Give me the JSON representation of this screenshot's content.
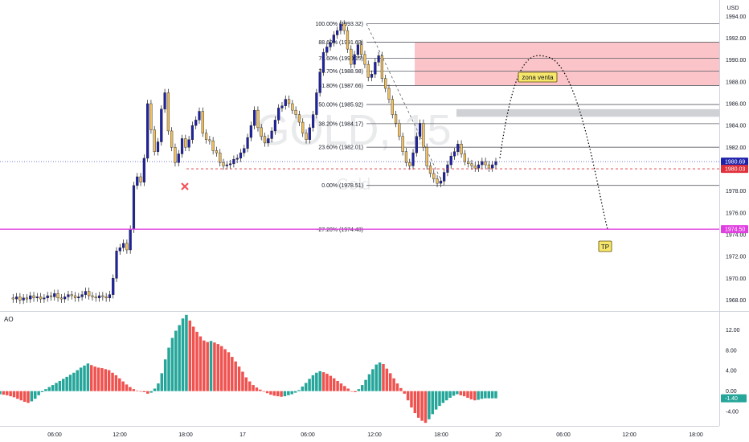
{
  "chart_data": {
    "type": "candlestick",
    "currency": "USD",
    "watermark_symbol": "GOLD, 15",
    "watermark_name": "Gold",
    "price_axis": {
      "ylim": [
        1967.0,
        1995.5
      ],
      "ticks": [
        1968,
        1970,
        1972,
        1974,
        1976,
        1978,
        1980,
        1982,
        1984,
        1986,
        1988,
        1990,
        1992,
        1994
      ],
      "tick_labels": [
        "1968.00",
        "1970.00",
        "1972.00",
        "1974.00",
        "1976.00",
        "1978.00",
        "1980.00",
        "1982.00",
        "1984.00",
        "1986.00",
        "1988.00",
        "1990.00",
        "1992.00",
        "1994.00"
      ]
    },
    "time_axis": {
      "labels": [
        "06:00",
        "12:00",
        "18:00",
        "17",
        "06:00",
        "12:00",
        "18:00",
        "20",
        "06:00",
        "12:00",
        "18:00"
      ]
    },
    "price_tags": [
      {
        "value": 1980.69,
        "label": "1980.69",
        "color": "#1e22aa"
      },
      {
        "value": 1980.03,
        "label": "1980.03",
        "color": "#e0303a"
      },
      {
        "value": 1974.5,
        "label": "1974.50",
        "color": "#e040e0"
      }
    ],
    "fib_levels": [
      {
        "label": "100.00% (1993.32)",
        "value": 1993.32
      },
      {
        "label": "88.60% (1991.63)",
        "value": 1991.63
      },
      {
        "label": "78.60% (1990.15)",
        "value": 1990.15
      },
      {
        "label": "70.70% (1988.98)",
        "value": 1988.98
      },
      {
        "label": "61.80% (1987.66)",
        "value": 1987.66
      },
      {
        "label": "50.00% (1985.92)",
        "value": 1985.92
      },
      {
        "label": "38.20% (1984.17)",
        "value": 1984.17
      },
      {
        "label": "23.60% (1982.01)",
        "value": 1982.01
      },
      {
        "label": "0.00% (1978.51)",
        "value": 1978.51
      },
      {
        "label": "-27.20% (1974.48)",
        "value": 1974.48
      }
    ],
    "sell_zone": {
      "label": "zona venta",
      "from": 1987.66,
      "to": 1991.63
    },
    "grey_band": {
      "from": 1984.8,
      "to": 1985.5
    },
    "target_label": "TP",
    "target_level": 1974.5,
    "candles_price_path": [
      1968.2,
      1968.1,
      1968.3,
      1968.0,
      1968.2,
      1968.1,
      1968.4,
      1968.2,
      1968.3,
      1968.1,
      1968.2,
      1968.4,
      1968.3,
      1968.6,
      1968.2,
      1968.1,
      1968.3,
      1968.5,
      1968.4,
      1968.2,
      1968.3,
      1968.5,
      1968.8,
      1968.4,
      1968.3,
      1968.2,
      1968.4,
      1968.3,
      1968.2,
      1968.5,
      1970.0,
      1972.5,
      1972.8,
      1973.2,
      1972.6,
      1974.5,
      1978.5,
      1979.3,
      1978.8,
      1981.0,
      1986.0,
      1983.6,
      1981.6,
      1982.5,
      1985.5,
      1987.0,
      1983.5,
      1982.0,
      1980.6,
      1981.4,
      1982.8,
      1982.0,
      1982.7,
      1984.0,
      1984.5,
      1985.3,
      1983.3,
      1982.7,
      1982.6,
      1981.7,
      1981.5,
      1980.6,
      1980.3,
      1980.4,
      1980.5,
      1980.9,
      1981.0,
      1981.5,
      1981.9,
      1982.9,
      1984.0,
      1985.4,
      1983.8,
      1983.0,
      1982.4,
      1982.8,
      1983.5,
      1984.5,
      1985.6,
      1985.8,
      1986.4,
      1986.0,
      1985.4,
      1985.0,
      1984.3,
      1983.3,
      1982.7,
      1983.8,
      1985.0,
      1987.0,
      1988.9,
      1990.7,
      1991.2,
      1991.6,
      1992.3,
      1992.7,
      1993.3,
      1992.7,
      1991.0,
      1989.6,
      1990.5,
      1991.4,
      1990.5,
      1989.6,
      1988.4,
      1988.7,
      1989.8,
      1990.4,
      1988.3,
      1987.4,
      1986.4,
      1985.0,
      1984.2,
      1983.0,
      1981.6,
      1980.6,
      1980.3,
      1981.5,
      1983.0,
      1984.2,
      1982.0,
      1980.3,
      1979.6,
      1979.1,
      1978.7,
      1978.9,
      1979.7,
      1980.4,
      1981.2,
      1981.6,
      1982.3,
      1981.4,
      1980.7,
      1980.5,
      1980.3,
      1980.1,
      1980.4,
      1980.7,
      1980.4,
      1980.1,
      1980.4,
      1980.69
    ],
    "ao": {
      "name": "AO",
      "ylim": [
        -6.8,
        15.5
      ],
      "ticks": [
        -4,
        0,
        4,
        8,
        12
      ],
      "tick_labels": [
        "-4.00",
        "0.00",
        "4.00",
        "8.00",
        "12.00"
      ],
      "current": "-1.40",
      "values": [
        -0.6,
        -0.7,
        -0.8,
        -1.0,
        -1.2,
        -1.5,
        -1.8,
        -2.1,
        -2.3,
        -2.0,
        -1.5,
        -0.8,
        -0.2,
        0.4,
        0.8,
        1.2,
        1.6,
        2.0,
        2.4,
        2.8,
        3.2,
        3.6,
        4.1,
        4.6,
        5.0,
        5.4,
        5.1,
        4.8,
        4.6,
        4.5,
        4.3,
        4.1,
        3.6,
        3.1,
        2.5,
        1.9,
        1.3,
        0.8,
        0.4,
        0.1,
        -0.1,
        -0.2,
        -0.5,
        -0.3,
        0.5,
        1.5,
        3.5,
        6.2,
        8.5,
        10.4,
        11.8,
        12.9,
        14.2,
        14.9,
        13.8,
        12.6,
        11.6,
        10.7,
        9.9,
        9.6,
        9.8,
        9.5,
        9.2,
        8.8,
        8.2,
        7.6,
        6.7,
        5.8,
        4.8,
        3.8,
        2.7,
        1.9,
        1.2,
        0.7,
        0.3,
        -0.1,
        -0.4,
        -0.7,
        -0.9,
        -1.0,
        -1.1,
        -1.0,
        -0.8,
        -0.6,
        -0.3,
        0.2,
        0.9,
        1.6,
        2.4,
        3.1,
        3.6,
        3.9,
        3.7,
        3.4,
        3.0,
        2.5,
        2.0,
        1.5,
        1.0,
        0.5,
        0.0,
        -0.2,
        0.4,
        1.2,
        2.2,
        3.3,
        4.3,
        5.2,
        5.6,
        5.3,
        4.4,
        3.5,
        2.5,
        1.5,
        0.6,
        -0.5,
        -1.8,
        -3.2,
        -4.3,
        -5.2,
        -5.8,
        -6.2,
        -5.5,
        -4.5,
        -3.6,
        -2.9,
        -2.3,
        -1.8,
        -1.3,
        -0.9,
        -0.6,
        -0.8,
        -1.0,
        -1.3,
        -1.6,
        -1.8,
        -1.7,
        -1.5,
        -1.4,
        -1.4,
        -1.4,
        -1.4
      ]
    }
  }
}
